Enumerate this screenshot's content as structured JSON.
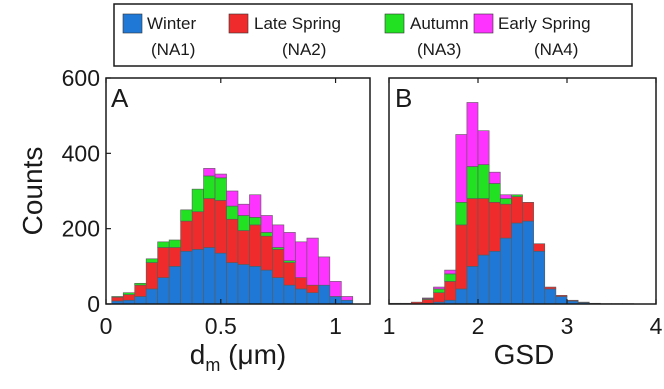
{
  "legend": [
    {
      "line1": "Winter",
      "line2": "(NA1)",
      "color": "#1f78d6"
    },
    {
      "line1": "Late Spring",
      "line2": "(NA2)",
      "color": "#ef2b2b"
    },
    {
      "line1": "Autumn",
      "line2": "(NA3)",
      "color": "#22e022"
    },
    {
      "line1": "Early Spring",
      "line2": "(NA4)",
      "color": "#ff33ff"
    }
  ],
  "chart_data": [
    {
      "type": "bar",
      "stacked": true,
      "panel_label": "A",
      "xlabel_main": "d",
      "xlabel_sub": "m",
      "xlabel_rest": " (μm)",
      "ylabel": "Counts",
      "xlim": [
        0,
        1.15
      ],
      "ylim": [
        0,
        600
      ],
      "xticks": [
        "0",
        "0.5",
        "1"
      ],
      "xtick_values": [
        0,
        0.5,
        1
      ],
      "yticks": [
        "0",
        "200",
        "400",
        "600"
      ],
      "ytick_values": [
        0,
        200,
        400,
        600
      ],
      "bin_edges": [
        0.025,
        0.075,
        0.125,
        0.175,
        0.225,
        0.275,
        0.325,
        0.375,
        0.425,
        0.475,
        0.525,
        0.575,
        0.625,
        0.675,
        0.725,
        0.775,
        0.825,
        0.875,
        0.925,
        0.975,
        1.025,
        1.075
      ],
      "series": [
        {
          "name": "Winter (NA1)",
          "color": "#1f78d6",
          "values": [
            8,
            10,
            20,
            40,
            70,
            100,
            140,
            145,
            150,
            135,
            110,
            105,
            100,
            90,
            70,
            50,
            40,
            30,
            50,
            20,
            10
          ]
        },
        {
          "name": "Late Spring (NA2)",
          "color": "#ef2b2b",
          "values": [
            10,
            15,
            30,
            70,
            80,
            50,
            80,
            100,
            130,
            140,
            115,
            90,
            110,
            90,
            75,
            60,
            30,
            20,
            0,
            0,
            0
          ]
        },
        {
          "name": "Autumn (NA3)",
          "color": "#22e022",
          "values": [
            2,
            5,
            5,
            10,
            15,
            20,
            30,
            60,
            60,
            60,
            35,
            40,
            20,
            10,
            5,
            5,
            0,
            0,
            0,
            0,
            0
          ]
        },
        {
          "name": "Early Spring (NA4)",
          "color": "#ff33ff",
          "values": [
            0,
            0,
            0,
            0,
            0,
            0,
            0,
            0,
            20,
            10,
            40,
            30,
            60,
            45,
            60,
            75,
            95,
            125,
            75,
            40,
            10
          ]
        }
      ]
    },
    {
      "type": "bar",
      "stacked": true,
      "panel_label": "B",
      "xlabel": "GSD",
      "ylabel": "",
      "xlim": [
        1,
        4
      ],
      "ylim": [
        0,
        600
      ],
      "xticks": [
        "1",
        "2",
        "3",
        "4"
      ],
      "xtick_values": [
        1,
        2,
        3,
        4
      ],
      "yticks": [],
      "bin_edges": [
        1.0,
        1.125,
        1.25,
        1.375,
        1.5,
        1.625,
        1.75,
        1.875,
        2.0,
        2.125,
        2.25,
        2.375,
        2.5,
        2.625,
        2.75,
        2.875,
        3.0,
        3.125,
        3.25,
        3.375,
        3.5,
        3.625,
        3.75,
        3.875
      ],
      "series": [
        {
          "name": "Winter (NA1)",
          "color": "#1f78d6",
          "values": [
            0,
            0,
            0,
            2,
            5,
            10,
            40,
            100,
            130,
            140,
            175,
            215,
            220,
            140,
            40,
            20,
            8,
            4,
            2,
            1,
            1,
            1,
            0
          ]
        },
        {
          "name": "Late Spring (NA2)",
          "color": "#ef2b2b",
          "values": [
            2,
            2,
            5,
            10,
            25,
            50,
            170,
            180,
            150,
            130,
            90,
            70,
            50,
            20,
            5,
            3,
            2,
            1,
            0,
            0,
            0,
            0,
            0
          ]
        },
        {
          "name": "Autumn (NA3)",
          "color": "#22e022",
          "values": [
            0,
            0,
            0,
            2,
            10,
            20,
            60,
            85,
            90,
            50,
            15,
            5,
            0,
            0,
            0,
            0,
            0,
            0,
            0,
            0,
            0,
            0,
            0
          ]
        },
        {
          "name": "Early Spring (NA4)",
          "color": "#ff33ff",
          "values": [
            0,
            0,
            0,
            2,
            5,
            10,
            180,
            170,
            90,
            30,
            10,
            0,
            0,
            0,
            0,
            0,
            0,
            0,
            0,
            0,
            0,
            0,
            0
          ]
        }
      ]
    }
  ]
}
